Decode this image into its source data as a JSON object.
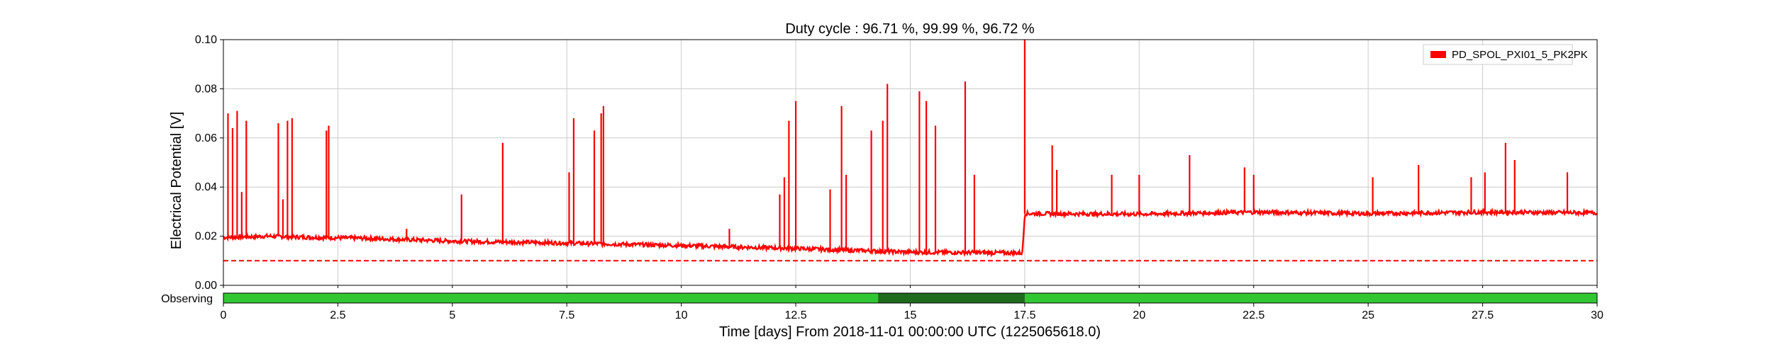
{
  "chart_data": {
    "type": "line",
    "title": "Duty cycle : 96.71 %, 99.99 %, 96.72 %",
    "xlabel": "Time [days] From 2018-11-01 00:00:00 UTC (1225065618.0)",
    "ylabel": "Electrical Potential [V]",
    "xlim": [
      0,
      30
    ],
    "ylim": [
      0,
      0.1
    ],
    "xticks": [
      0,
      2.5,
      5,
      7.5,
      10,
      12.5,
      15,
      17.5,
      20,
      22.5,
      25,
      27.5,
      30
    ],
    "xtick_labels": [
      "0",
      "2.5",
      "5",
      "7.5",
      "10",
      "12.5",
      "15",
      "17.5",
      "20",
      "22.5",
      "25",
      "27.5",
      "30"
    ],
    "yticks": [
      0,
      0.02,
      0.04,
      0.06,
      0.08,
      0.1
    ],
    "ytick_labels": [
      "0.00",
      "0.02",
      "0.04",
      "0.06",
      "0.08",
      "0.10"
    ],
    "grid": true,
    "legend_position": "top-right",
    "series": [
      {
        "name": "PD_SPOL_PXI01_5_PK2PK",
        "color": "#ff0000",
        "baseline": [
          [
            0,
            0.0195
          ],
          [
            1,
            0.02
          ],
          [
            2,
            0.0195
          ],
          [
            3,
            0.0192
          ],
          [
            5,
            0.018
          ],
          [
            7.5,
            0.0172
          ],
          [
            10,
            0.0162
          ],
          [
            12.5,
            0.015
          ],
          [
            15,
            0.0135
          ],
          [
            17.45,
            0.0132
          ],
          [
            17.5,
            0.0292
          ],
          [
            20,
            0.029
          ],
          [
            22.5,
            0.0298
          ],
          [
            25,
            0.0292
          ],
          [
            27.5,
            0.0298
          ],
          [
            30,
            0.0295
          ]
        ],
        "spikes": [
          [
            0.1,
            0.07
          ],
          [
            0.2,
            0.064
          ],
          [
            0.3,
            0.071
          ],
          [
            0.4,
            0.038
          ],
          [
            0.5,
            0.067
          ],
          [
            1.2,
            0.066
          ],
          [
            1.3,
            0.035
          ],
          [
            1.4,
            0.067
          ],
          [
            1.5,
            0.068
          ],
          [
            2.25,
            0.063
          ],
          [
            2.3,
            0.065
          ],
          [
            4.0,
            0.023
          ],
          [
            5.2,
            0.037
          ],
          [
            6.1,
            0.058
          ],
          [
            7.55,
            0.046
          ],
          [
            7.65,
            0.068
          ],
          [
            8.1,
            0.063
          ],
          [
            8.25,
            0.07
          ],
          [
            8.3,
            0.073
          ],
          [
            11.05,
            0.023
          ],
          [
            12.15,
            0.037
          ],
          [
            12.25,
            0.044
          ],
          [
            12.35,
            0.067
          ],
          [
            12.5,
            0.075
          ],
          [
            13.25,
            0.039
          ],
          [
            13.5,
            0.073
          ],
          [
            13.6,
            0.045
          ],
          [
            14.15,
            0.063
          ],
          [
            14.4,
            0.067
          ],
          [
            14.5,
            0.082
          ],
          [
            15.2,
            0.079
          ],
          [
            15.35,
            0.075
          ],
          [
            15.55,
            0.065
          ],
          [
            16.2,
            0.083
          ],
          [
            16.4,
            0.045
          ],
          [
            17.5,
            0.1
          ],
          [
            18.1,
            0.057
          ],
          [
            18.2,
            0.047
          ],
          [
            19.4,
            0.045
          ],
          [
            20.0,
            0.045
          ],
          [
            21.1,
            0.053
          ],
          [
            22.3,
            0.048
          ],
          [
            22.5,
            0.045
          ],
          [
            25.1,
            0.044
          ],
          [
            26.1,
            0.049
          ],
          [
            27.25,
            0.044
          ],
          [
            27.55,
            0.046
          ],
          [
            28.0,
            0.058
          ],
          [
            28.2,
            0.051
          ],
          [
            29.35,
            0.046
          ]
        ]
      }
    ],
    "threshold": {
      "value": 0.01,
      "color": "#ff0000",
      "style": "dashed"
    },
    "state_bar": {
      "label": "Observing",
      "color": "#33c633",
      "segment_color": "#1e6b1e",
      "segments": [
        [
          14.3,
          17.5
        ]
      ]
    }
  },
  "colors": {
    "grid": "#cccccc",
    "axis": "#000000",
    "series": "#ff0000",
    "state_on": "#33c633",
    "state_dark": "#1e6b1e"
  }
}
